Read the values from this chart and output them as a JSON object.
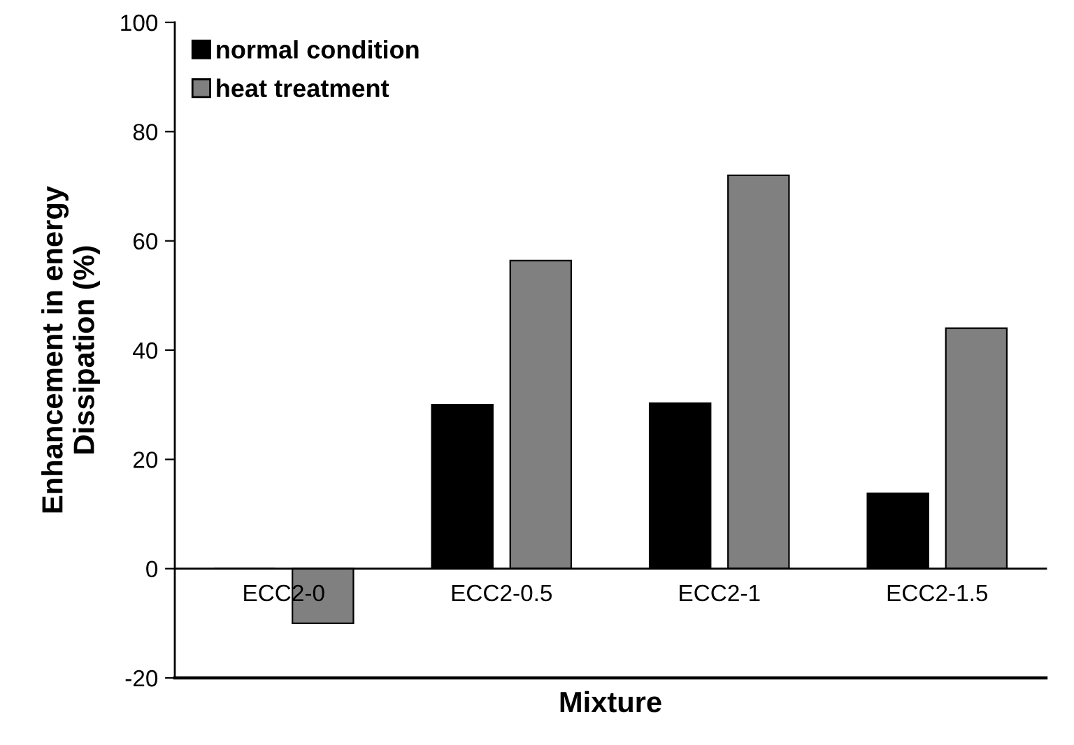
{
  "chart_data": {
    "type": "bar",
    "xlabel": "Mixture",
    "ylabel": "Enhancement in energy\nDissipation (%)",
    "categories": [
      "ECC2-0",
      "ECC2-0.5",
      "ECC2-1",
      "ECC2-1.5"
    ],
    "series": [
      {
        "name": "normal condition",
        "color": "#000000",
        "values": [
          0,
          30,
          30.3,
          13.8
        ]
      },
      {
        "name": "heat treatment",
        "color": "#808080",
        "values": [
          -10,
          56.4,
          72,
          44
        ]
      }
    ],
    "ylim": [
      -20,
      100
    ],
    "yticks": [
      -20,
      0,
      20,
      40,
      60,
      80,
      100
    ],
    "grid": false,
    "legend": "top left"
  }
}
